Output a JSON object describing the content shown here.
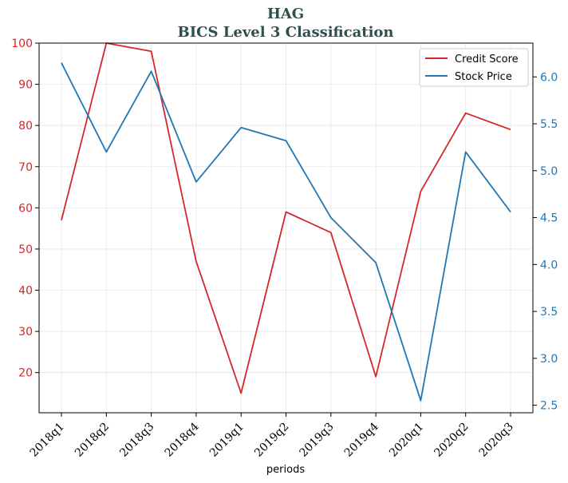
{
  "chart_data": {
    "type": "line",
    "title": "HAG",
    "subtitle": "BICS Level 3 Classification",
    "xlabel": "periods",
    "categories": [
      "2018q1",
      "2018q2",
      "2018q3",
      "2018q4",
      "2019q1",
      "2019q2",
      "2019q3",
      "2019q4",
      "2020q1",
      "2020q2",
      "2020q3"
    ],
    "series": [
      {
        "name": "Credit Score",
        "axis": "left",
        "color": "#d62728",
        "values": [
          57,
          100,
          98,
          47,
          15,
          59,
          54,
          19,
          64,
          83,
          79
        ]
      },
      {
        "name": "Stock Price",
        "axis": "right",
        "color": "#1f77b4",
        "values": [
          6.15,
          5.2,
          6.06,
          4.88,
          5.46,
          5.32,
          4.5,
          4.02,
          2.55,
          5.2,
          4.56
        ]
      }
    ],
    "y_left": {
      "min": 10.25,
      "max": 100,
      "ticks": [
        "20",
        "30",
        "40",
        "50",
        "60",
        "70",
        "80",
        "90",
        "100"
      ],
      "color": "#d62728"
    },
    "y_right": {
      "min": 2.42,
      "max": 6.36,
      "ticks": [
        "2.5",
        "3.0",
        "3.5",
        "4.0",
        "4.5",
        "5.0",
        "5.5",
        "6.0"
      ],
      "color": "#1f77b4"
    },
    "grid": true,
    "legend_position": "top-right"
  }
}
